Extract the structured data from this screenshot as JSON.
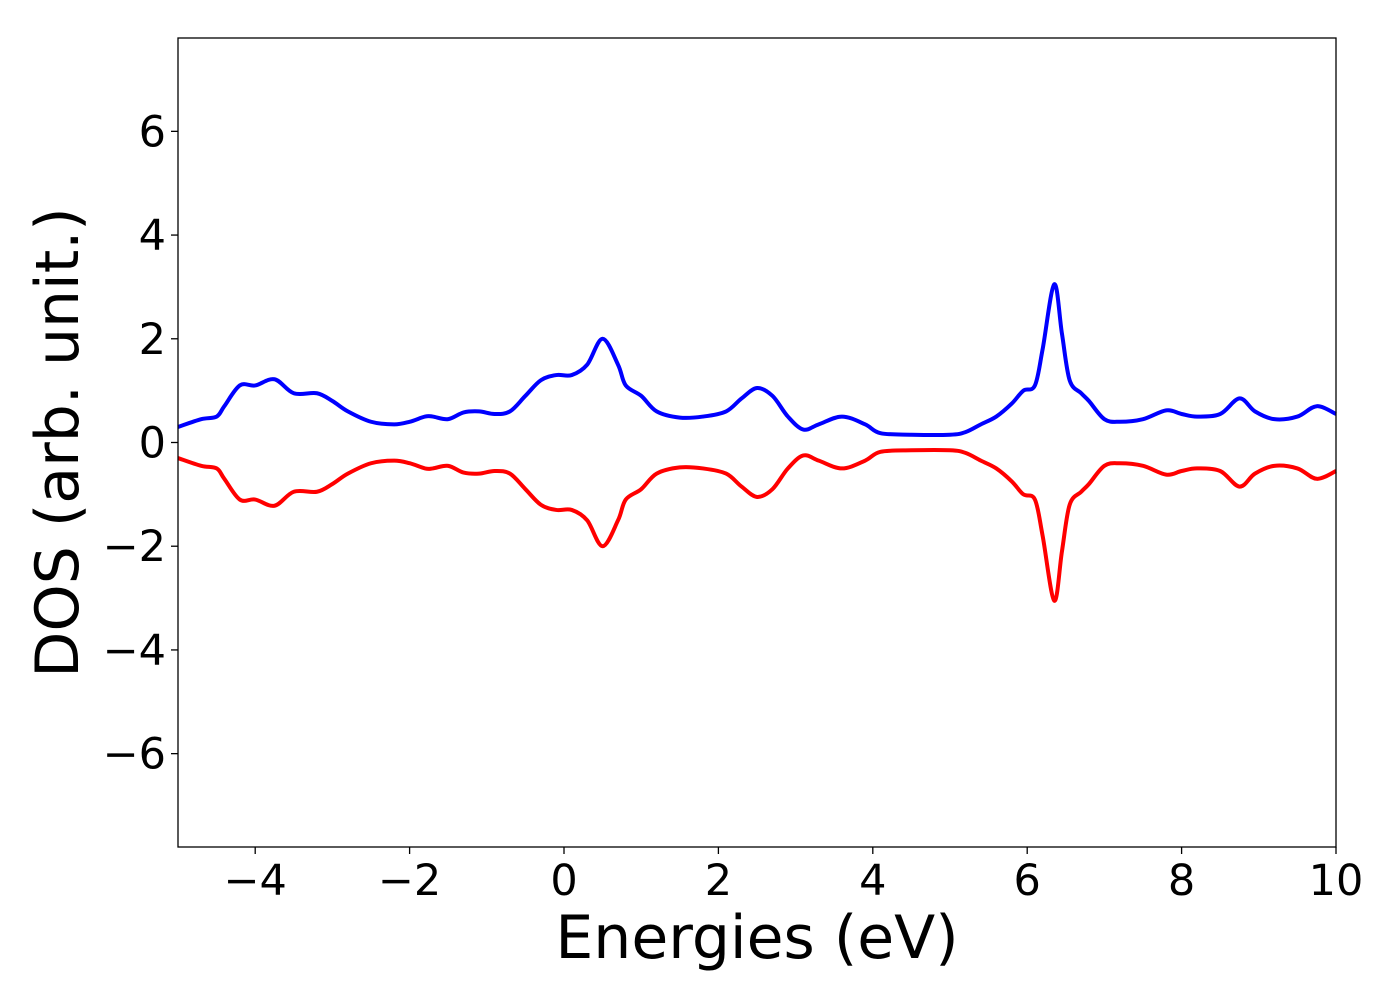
{
  "chart_data": {
    "type": "line",
    "xlabel": "Energies (eV)",
    "ylabel": "DOS (arb. unit.)",
    "xlim": [
      -5,
      10
    ],
    "ylim": [
      -7.8,
      7.8
    ],
    "xticks": [
      -4,
      -2,
      0,
      2,
      4,
      6,
      8,
      10
    ],
    "yticks": [
      -6,
      -4,
      -2,
      0,
      2,
      4,
      6
    ],
    "xtick_labels": [
      "−4",
      "−2",
      "0",
      "2",
      "4",
      "6",
      "8",
      "10"
    ],
    "ytick_labels": [
      "−6",
      "−4",
      "−2",
      "0",
      "2",
      "4",
      "6"
    ],
    "grid": false,
    "colors": {
      "spin_up": "#0000ff",
      "spin_down": "#ff0000"
    },
    "series": [
      {
        "color": "#0000ff",
        "x": [
          -5.0,
          -4.7,
          -4.5,
          -4.4,
          -4.2,
          -4.0,
          -3.75,
          -3.5,
          -3.2,
          -3.0,
          -2.8,
          -2.5,
          -2.2,
          -2.0,
          -1.8,
          -1.7,
          -1.5,
          -1.3,
          -1.1,
          -0.9,
          -0.7,
          -0.5,
          -0.3,
          -0.1,
          0.1,
          0.3,
          0.5,
          0.7,
          0.8,
          1.0,
          1.2,
          1.5,
          1.8,
          2.1,
          2.3,
          2.5,
          2.7,
          2.9,
          3.1,
          3.3,
          3.6,
          3.9,
          4.1,
          4.5,
          5.0,
          5.2,
          5.4,
          5.6,
          5.8,
          5.95,
          6.1,
          6.2,
          6.35,
          6.45,
          6.55,
          6.7,
          6.8,
          7.0,
          7.2,
          7.5,
          7.8,
          8.0,
          8.2,
          8.5,
          8.75,
          8.95,
          9.2,
          9.5,
          9.75,
          10.0
        ],
        "y": [
          0.3,
          0.45,
          0.5,
          0.7,
          1.1,
          1.1,
          1.22,
          0.95,
          0.95,
          0.8,
          0.6,
          0.4,
          0.35,
          0.4,
          0.5,
          0.5,
          0.45,
          0.58,
          0.6,
          0.55,
          0.6,
          0.9,
          1.2,
          1.3,
          1.3,
          1.5,
          2.0,
          1.5,
          1.1,
          0.9,
          0.6,
          0.48,
          0.5,
          0.6,
          0.85,
          1.05,
          0.9,
          0.5,
          0.25,
          0.35,
          0.5,
          0.35,
          0.18,
          0.15,
          0.15,
          0.2,
          0.35,
          0.5,
          0.75,
          1.0,
          1.1,
          1.8,
          3.05,
          2.1,
          1.2,
          0.95,
          0.8,
          0.45,
          0.4,
          0.45,
          0.62,
          0.55,
          0.5,
          0.55,
          0.85,
          0.6,
          0.45,
          0.5,
          0.7,
          0.55
        ]
      },
      {
        "color": "#ff0000",
        "x": [
          -5.0,
          -4.7,
          -4.5,
          -4.4,
          -4.2,
          -4.0,
          -3.75,
          -3.5,
          -3.2,
          -3.0,
          -2.8,
          -2.5,
          -2.2,
          -2.0,
          -1.8,
          -1.7,
          -1.5,
          -1.3,
          -1.1,
          -0.9,
          -0.7,
          -0.5,
          -0.3,
          -0.1,
          0.1,
          0.3,
          0.5,
          0.7,
          0.8,
          1.0,
          1.2,
          1.5,
          1.8,
          2.1,
          2.3,
          2.5,
          2.7,
          2.9,
          3.1,
          3.3,
          3.6,
          3.9,
          4.1,
          4.5,
          5.0,
          5.2,
          5.4,
          5.6,
          5.8,
          5.95,
          6.1,
          6.2,
          6.35,
          6.45,
          6.55,
          6.7,
          6.8,
          7.0,
          7.2,
          7.5,
          7.8,
          8.0,
          8.2,
          8.5,
          8.75,
          8.95,
          9.2,
          9.5,
          9.75,
          10.0
        ],
        "y": [
          -0.3,
          -0.45,
          -0.5,
          -0.7,
          -1.1,
          -1.1,
          -1.22,
          -0.95,
          -0.95,
          -0.8,
          -0.6,
          -0.4,
          -0.35,
          -0.4,
          -0.5,
          -0.5,
          -0.45,
          -0.58,
          -0.6,
          -0.55,
          -0.6,
          -0.9,
          -1.2,
          -1.3,
          -1.3,
          -1.5,
          -2.0,
          -1.5,
          -1.1,
          -0.9,
          -0.6,
          -0.48,
          -0.5,
          -0.6,
          -0.85,
          -1.05,
          -0.9,
          -0.5,
          -0.25,
          -0.35,
          -0.5,
          -0.35,
          -0.18,
          -0.15,
          -0.15,
          -0.2,
          -0.35,
          -0.5,
          -0.75,
          -1.0,
          -1.1,
          -1.8,
          -3.05,
          -2.1,
          -1.2,
          -0.95,
          -0.8,
          -0.45,
          -0.4,
          -0.45,
          -0.62,
          -0.55,
          -0.5,
          -0.55,
          -0.85,
          -0.6,
          -0.45,
          -0.5,
          -0.7,
          -0.55
        ]
      }
    ]
  }
}
